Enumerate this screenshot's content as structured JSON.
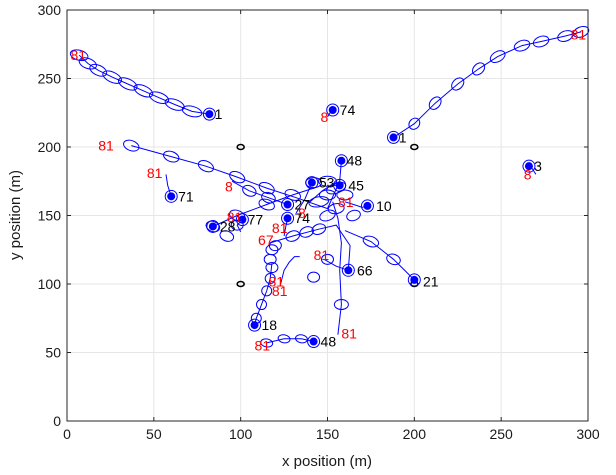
{
  "chart_data": {
    "type": "scatter",
    "xlabel": "x position (m)",
    "ylabel": "y position (m)",
    "xlim": [
      0,
      300
    ],
    "ylim": [
      0,
      300
    ],
    "x_ticks": [
      0,
      50,
      100,
      150,
      200,
      250,
      300
    ],
    "y_ticks": [
      0,
      50,
      100,
      150,
      200,
      250,
      300
    ],
    "grid": true,
    "colors": {
      "track": "#0000ff",
      "anchor": "#000000",
      "start_label": "#ff0000",
      "end_label": "#000000",
      "grid": "#e6e6e6"
    },
    "anchors": [
      {
        "x": 100,
        "y": 200
      },
      {
        "x": 200,
        "y": 200
      },
      {
        "x": 100,
        "y": 100
      },
      {
        "x": 200,
        "y": 100
      }
    ],
    "tracks": [
      {
        "start_label": "81",
        "end_label": "1",
        "points": [
          [
            7,
            267
          ],
          [
            12,
            261
          ],
          [
            18,
            256
          ],
          [
            26,
            251
          ],
          [
            35,
            246
          ],
          [
            44,
            241
          ],
          [
            53,
            236
          ],
          [
            62,
            231
          ],
          [
            72,
            226
          ],
          [
            82,
            224
          ]
        ]
      },
      {
        "start_label": "81",
        "end_label": "1",
        "points": [
          [
            296,
            284
          ],
          [
            287,
            281
          ],
          [
            273,
            277
          ],
          [
            262,
            274
          ],
          [
            248,
            266
          ],
          [
            237,
            257
          ],
          [
            225,
            246
          ],
          [
            212,
            232
          ],
          [
            200,
            217
          ],
          [
            188,
            207
          ]
        ]
      },
      {
        "start_label": "8",
        "end_label": "74",
        "points": [
          [
            150,
            222
          ],
          [
            152,
            226
          ],
          [
            153,
            227
          ]
        ]
      },
      {
        "start_label": "8",
        "end_label": "3",
        "points": [
          [
            270,
            180
          ],
          [
            268,
            184
          ],
          [
            266,
            186
          ]
        ]
      },
      {
        "start_label": "81",
        "end_label": "71",
        "points": [
          [
            57,
            180
          ],
          [
            58,
            172
          ],
          [
            60,
            164
          ]
        ]
      },
      {
        "start_label": "81",
        "end_label": "48",
        "points": [
          [
            37,
            201
          ],
          [
            60,
            193
          ],
          [
            80,
            186
          ],
          [
            98,
            178
          ],
          [
            115,
            170
          ],
          [
            132,
            163
          ],
          [
            150,
            155
          ],
          [
            157,
            175
          ],
          [
            158,
            190
          ]
        ]
      },
      {
        "start_label": "8",
        "end_label": "27",
        "points": [
          [
            95,
            175
          ],
          [
            105,
            168
          ],
          [
            116,
            163
          ],
          [
            127,
            158
          ]
        ]
      },
      {
        "start_label": "8",
        "end_label": "45",
        "points": [
          [
            140,
            160
          ],
          [
            147,
            168
          ],
          [
            152,
            172
          ],
          [
            157,
            172
          ]
        ]
      },
      {
        "start_label": "8",
        "end_label": "53",
        "points": [
          [
            132,
            152
          ],
          [
            137,
            162
          ],
          [
            141,
            174
          ]
        ]
      },
      {
        "start_label": "81",
        "end_label": "28",
        "points": [
          [
            142,
            170
          ],
          [
            130,
            165
          ],
          [
            115,
            158
          ],
          [
            98,
            150
          ],
          [
            84,
            142
          ]
        ]
      },
      {
        "start_label": "81",
        "end_label": "77",
        "points": [
          [
            100,
            138
          ],
          [
            98,
            143
          ],
          [
            101,
            147
          ]
        ]
      },
      {
        "start_label": "8",
        "end_label": "74",
        "points": [
          [
            125,
            135
          ],
          [
            126,
            142
          ],
          [
            127,
            148
          ]
        ]
      },
      {
        "start_label": "81",
        "end_label": "10",
        "points": [
          [
            160,
            160
          ],
          [
            165,
            158
          ],
          [
            170,
            156
          ],
          [
            173,
            157
          ]
        ]
      },
      {
        "start_label": "67",
        "end_label": "66",
        "points": [
          [
            117,
            130
          ],
          [
            130,
            135
          ],
          [
            145,
            140
          ],
          [
            155,
            143
          ],
          [
            163,
            128
          ],
          [
            162,
            110
          ]
        ]
      },
      {
        "start_label": "81",
        "end_label": "66",
        "points": [
          [
            148,
            118
          ],
          [
            155,
            113
          ],
          [
            162,
            110
          ]
        ]
      },
      {
        "start_label": "81",
        "end_label": "21",
        "points": [
          [
            160,
            139
          ],
          [
            175,
            131
          ],
          [
            188,
            118
          ],
          [
            200,
            103
          ]
        ]
      },
      {
        "start_label": "81",
        "end_label": "21",
        "points": [
          [
            123,
            100
          ],
          [
            125,
            110
          ],
          [
            128,
            116
          ],
          [
            131,
            120
          ],
          [
            134,
            120
          ]
        ]
      },
      {
        "start_label": "81",
        "end_label": "18",
        "points": [
          [
            118,
            115
          ],
          [
            117,
            104
          ],
          [
            115,
            95
          ],
          [
            112,
            85
          ],
          [
            109,
            75
          ],
          [
            108,
            70
          ]
        ]
      },
      {
        "start_label": "81",
        "end_label": "48",
        "points": [
          [
            115,
            57
          ],
          [
            125,
            60
          ],
          [
            135,
            60
          ],
          [
            142,
            58
          ]
        ]
      },
      {
        "start_label": "81",
        "end_label": "",
        "points": [
          [
            156,
            63
          ],
          [
            158,
            85
          ],
          [
            157,
            110
          ],
          [
            158,
            130
          ],
          [
            156,
            148
          ],
          [
            153,
            160
          ]
        ]
      }
    ],
    "covariance_ellipses": [
      [
        7,
        267,
        9,
        5,
        -15
      ],
      [
        12,
        261,
        9,
        5,
        -20
      ],
      [
        18,
        256,
        9,
        5,
        -25
      ],
      [
        26,
        251,
        10,
        5,
        -25
      ],
      [
        35,
        246,
        10,
        5,
        -25
      ],
      [
        44,
        241,
        10,
        5,
        -25
      ],
      [
        53,
        236,
        10,
        5,
        -20
      ],
      [
        62,
        231,
        10,
        5,
        -20
      ],
      [
        72,
        226,
        10,
        5,
        -15
      ],
      [
        296,
        284,
        8,
        5,
        20
      ],
      [
        287,
        281,
        8,
        5,
        20
      ],
      [
        273,
        277,
        8,
        5,
        20
      ],
      [
        262,
        274,
        8,
        5,
        20
      ],
      [
        248,
        266,
        8,
        5,
        30
      ],
      [
        237,
        257,
        7,
        5,
        45
      ],
      [
        225,
        246,
        7,
        5,
        45
      ],
      [
        212,
        232,
        7,
        5,
        50
      ],
      [
        200,
        217,
        6,
        5,
        50
      ],
      [
        37,
        201,
        8,
        5,
        -20
      ],
      [
        60,
        193,
        8,
        5,
        -20
      ],
      [
        80,
        186,
        8,
        5,
        -25
      ],
      [
        98,
        178,
        8,
        5,
        -25
      ],
      [
        115,
        170,
        8,
        5,
        -25
      ],
      [
        105,
        168,
        7,
        5,
        -25
      ],
      [
        116,
        163,
        7,
        5,
        -20
      ],
      [
        84,
        142,
        7,
        5,
        -20
      ],
      [
        98,
        150,
        8,
        5,
        -20
      ],
      [
        115,
        158,
        8,
        5,
        -20
      ],
      [
        130,
        165,
        8,
        5,
        -20
      ],
      [
        98,
        143,
        6,
        5,
        0
      ],
      [
        92,
        135,
        7,
        5,
        -20
      ],
      [
        120,
        128,
        6,
        5,
        10
      ],
      [
        130,
        135,
        7,
        5,
        20
      ],
      [
        138,
        138,
        7,
        5,
        20
      ],
      [
        145,
        140,
        7,
        5,
        20
      ],
      [
        150,
        150,
        8,
        5,
        20
      ],
      [
        155,
        155,
        8,
        5,
        10
      ],
      [
        145,
        160,
        10,
        5,
        10
      ],
      [
        150,
        165,
        8,
        5,
        0
      ],
      [
        160,
        165,
        8,
        5,
        0
      ],
      [
        155,
        170,
        10,
        5,
        20
      ],
      [
        150,
        175,
        9,
        5,
        0
      ],
      [
        142,
        174,
        8,
        5,
        0
      ],
      [
        165,
        150,
        7,
        5,
        20
      ],
      [
        175,
        131,
        8,
        5,
        -20
      ],
      [
        188,
        118,
        7,
        5,
        -20
      ],
      [
        150,
        118,
        6,
        5,
        0
      ],
      [
        118,
        125,
        6,
        5,
        0
      ],
      [
        117,
        118,
        6,
        5,
        0
      ],
      [
        118,
        112,
        6,
        5,
        0
      ],
      [
        117,
        104,
        5,
        5,
        0
      ],
      [
        115,
        95,
        5,
        5,
        0
      ],
      [
        112,
        85,
        5,
        5,
        0
      ],
      [
        109,
        75,
        5,
        5,
        0
      ],
      [
        115,
        57,
        6,
        4,
        -10
      ],
      [
        125,
        60,
        6,
        4,
        -10
      ],
      [
        135,
        60,
        6,
        4,
        -10
      ],
      [
        158,
        85,
        7,
        5,
        0
      ],
      [
        142,
        105,
        6,
        5,
        0
      ]
    ],
    "end_markers": [
      [
        82,
        224
      ],
      [
        188,
        207
      ],
      [
        153,
        227
      ],
      [
        266,
        186
      ],
      [
        60,
        164
      ],
      [
        158,
        190
      ],
      [
        127,
        158
      ],
      [
        157,
        172
      ],
      [
        141,
        174
      ],
      [
        84,
        142
      ],
      [
        101,
        147
      ],
      [
        127,
        148
      ],
      [
        173,
        157
      ],
      [
        162,
        110
      ],
      [
        200,
        103
      ],
      [
        108,
        70
      ],
      [
        142,
        58
      ]
    ],
    "text_labels": [
      {
        "text": "81",
        "x": 2,
        "y": 267,
        "color": "red"
      },
      {
        "text": "1",
        "x": 85,
        "y": 224,
        "color": "black"
      },
      {
        "text": "81",
        "x": 290,
        "y": 282,
        "color": "red"
      },
      {
        "text": "1",
        "x": 191,
        "y": 207,
        "color": "black"
      },
      {
        "text": "8",
        "x": 146,
        "y": 222,
        "color": "red"
      },
      {
        "text": "74",
        "x": 157,
        "y": 227,
        "color": "black"
      },
      {
        "text": "81",
        "x": 18,
        "y": 201,
        "color": "red"
      },
      {
        "text": "48",
        "x": 161,
        "y": 190,
        "color": "black"
      },
      {
        "text": "3",
        "x": 269,
        "y": 186,
        "color": "black"
      },
      {
        "text": "8",
        "x": 263,
        "y": 180,
        "color": "red"
      },
      {
        "text": "81",
        "x": 46,
        "y": 181,
        "color": "red"
      },
      {
        "text": "71",
        "x": 64,
        "y": 164,
        "color": "black"
      },
      {
        "text": "8",
        "x": 91,
        "y": 171,
        "color": "red"
      },
      {
        "text": "53",
        "x": 145,
        "y": 174,
        "color": "black"
      },
      {
        "text": "45",
        "x": 162,
        "y": 172,
        "color": "black"
      },
      {
        "text": "27",
        "x": 131,
        "y": 158,
        "color": "black"
      },
      {
        "text": "81",
        "x": 156,
        "y": 160,
        "color": "red"
      },
      {
        "text": "10",
        "x": 178,
        "y": 157,
        "color": "black"
      },
      {
        "text": "8",
        "x": 133,
        "y": 152,
        "color": "red"
      },
      {
        "text": "81",
        "x": 92,
        "y": 149,
        "color": "red"
      },
      {
        "text": "77",
        "x": 104,
        "y": 147,
        "color": "black"
      },
      {
        "text": "74",
        "x": 131,
        "y": 148,
        "color": "black"
      },
      {
        "text": "28",
        "x": 88,
        "y": 142,
        "color": "black"
      },
      {
        "text": "81",
        "x": 118,
        "y": 141,
        "color": "red"
      },
      {
        "text": "67",
        "x": 110,
        "y": 132,
        "color": "red"
      },
      {
        "text": "81",
        "x": 142,
        "y": 121,
        "color": "red"
      },
      {
        "text": "66",
        "x": 167,
        "y": 110,
        "color": "black"
      },
      {
        "text": "81",
        "x": 116,
        "y": 102,
        "color": "red"
      },
      {
        "text": "21",
        "x": 205,
        "y": 102,
        "color": "black"
      },
      {
        "text": "81",
        "x": 118,
        "y": 95,
        "color": "red"
      },
      {
        "text": "18",
        "x": 112,
        "y": 70,
        "color": "black"
      },
      {
        "text": "81",
        "x": 158,
        "y": 64,
        "color": "red"
      },
      {
        "text": "81",
        "x": 108,
        "y": 55,
        "color": "red"
      },
      {
        "text": "48",
        "x": 146,
        "y": 58,
        "color": "black"
      }
    ]
  }
}
